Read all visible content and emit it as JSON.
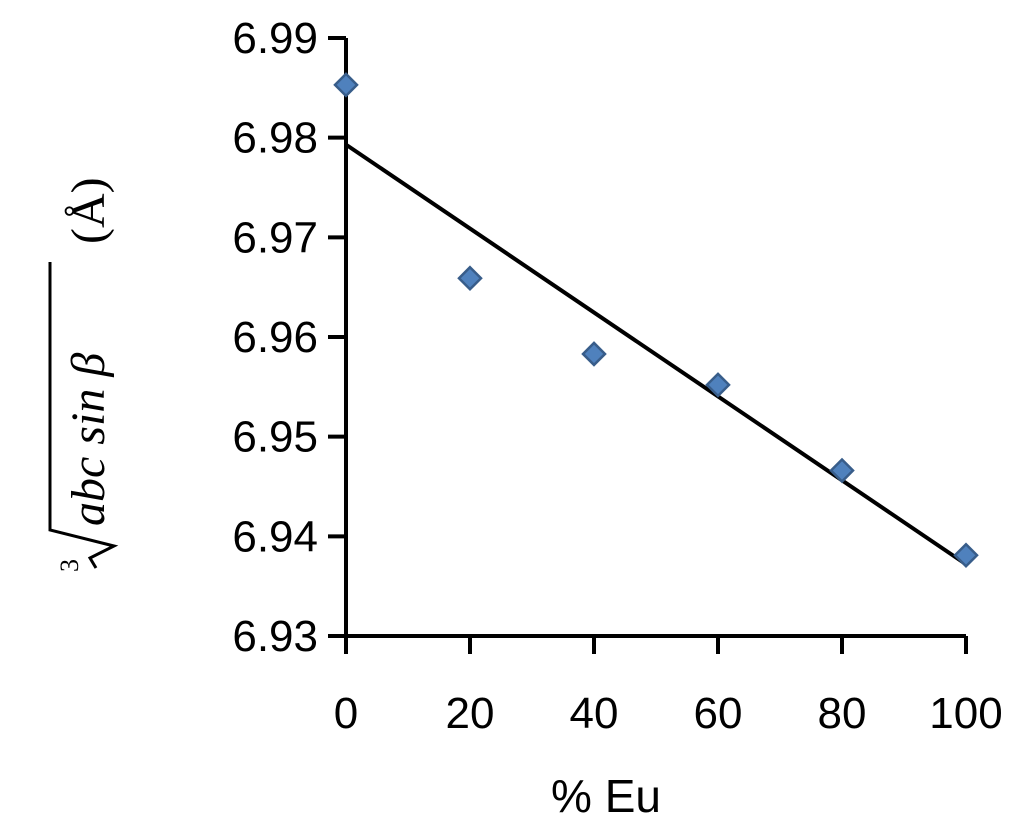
{
  "chart_data": {
    "type": "scatter",
    "xlabel": "% Eu",
    "ylabel": {
      "root_index": "3",
      "radicand": "abc sin β",
      "unit": "(Å)"
    },
    "xlim": [
      0,
      100
    ],
    "ylim": [
      6.93,
      6.99
    ],
    "x_ticks": [
      0,
      20,
      40,
      60,
      80,
      100
    ],
    "x_tick_labels": [
      "0",
      "20",
      "40",
      "60",
      "80",
      "100"
    ],
    "y_ticks": [
      6.93,
      6.94,
      6.95,
      6.96,
      6.97,
      6.98,
      6.99
    ],
    "y_tick_labels": [
      "6.93",
      "6.94",
      "6.95",
      "6.96",
      "6.97",
      "6.98",
      "6.99"
    ],
    "grid": false,
    "series": [
      {
        "marker": "diamond",
        "color": "#4F81BD",
        "edge_color": "#385D8A",
        "x": [
          0,
          20,
          40,
          60,
          80,
          100
        ],
        "y": [
          6.9853,
          6.9659,
          6.9583,
          6.9552,
          6.9466,
          6.9381
        ]
      }
    ],
    "trendline": {
      "type": "linear",
      "color": "#000000",
      "x": [
        0,
        100
      ],
      "y": [
        6.9793,
        6.9372
      ]
    }
  }
}
